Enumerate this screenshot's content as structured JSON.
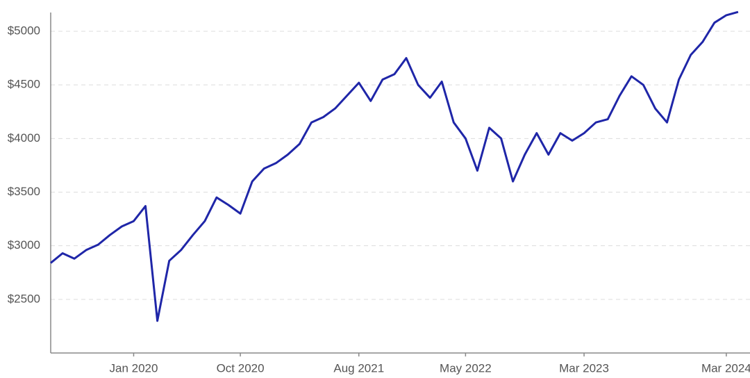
{
  "chart_data": {
    "type": "line",
    "x": [
      "2019-06",
      "2019-07",
      "2019-08",
      "2019-09",
      "2019-10",
      "2019-11",
      "2019-12",
      "2020-01",
      "2020-02",
      "2020-03",
      "2020-04",
      "2020-05",
      "2020-06",
      "2020-07",
      "2020-08",
      "2020-09",
      "2020-10",
      "2020-11",
      "2020-12",
      "2021-01",
      "2021-02",
      "2021-03",
      "2021-04",
      "2021-05",
      "2021-06",
      "2021-07",
      "2021-08",
      "2021-09",
      "2021-10",
      "2021-11",
      "2021-12",
      "2022-01",
      "2022-02",
      "2022-03",
      "2022-04",
      "2022-05",
      "2022-06",
      "2022-07",
      "2022-08",
      "2022-09",
      "2022-10",
      "2022-11",
      "2022-12",
      "2023-01",
      "2023-02",
      "2023-03",
      "2023-04",
      "2023-05",
      "2023-06",
      "2023-07",
      "2023-08",
      "2023-09",
      "2023-10",
      "2023-11",
      "2023-12",
      "2024-01",
      "2024-02",
      "2024-03",
      "2024-04"
    ],
    "series": [
      {
        "color": "#1f26a8",
        "values": [
          2840,
          2930,
          2880,
          2960,
          3010,
          3100,
          3180,
          3230,
          3370,
          2300,
          2860,
          2960,
          3100,
          3230,
          3450,
          3380,
          3300,
          3600,
          3720,
          3770,
          3850,
          3950,
          4150,
          4200,
          4280,
          4400,
          4520,
          4350,
          4550,
          4600,
          4750,
          4500,
          4380,
          4530,
          4150,
          4000,
          3700,
          4100,
          4000,
          3600,
          3850,
          4050,
          3850,
          4050,
          3980,
          4050,
          4150,
          4180,
          4400,
          4580,
          4500,
          4280,
          4150,
          4550,
          4780,
          4900,
          5080,
          5150,
          5180
        ]
      }
    ],
    "xlim": [
      "2019-06",
      "2024-05"
    ],
    "xticks": [
      {
        "value": "2020-01",
        "label": "Jan 2020"
      },
      {
        "value": "2020-10",
        "label": "Oct 2020"
      },
      {
        "value": "2021-08",
        "label": "Aug 2021"
      },
      {
        "value": "2022-05",
        "label": "May 2022"
      },
      {
        "value": "2023-03",
        "label": "Mar 2023"
      },
      {
        "value": "2024-03",
        "label": "Mar 2024"
      }
    ],
    "ylim": [
      2000,
      5175
    ],
    "yticks": [
      {
        "value": 2500,
        "label": "$2500"
      },
      {
        "value": 3000,
        "label": "$3000"
      },
      {
        "value": 3500,
        "label": "$3500"
      },
      {
        "value": 4000,
        "label": "$4000"
      },
      {
        "value": 4500,
        "label": "$4500"
      },
      {
        "value": 5000,
        "label": "$5000"
      }
    ],
    "grid": true
  }
}
